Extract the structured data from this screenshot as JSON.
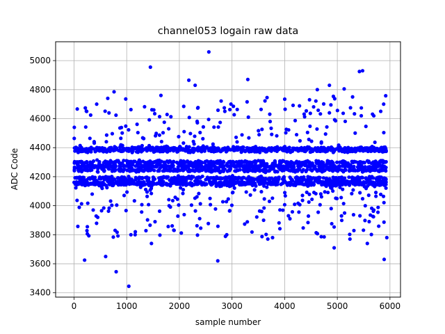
{
  "chart_data": {
    "type": "scatter",
    "title": "channel053 logain raw data",
    "xlabel": "sample number",
    "ylabel": "ADC Code",
    "xlim": [
      -350,
      6200
    ],
    "ylim": [
      3370,
      5130
    ],
    "xticks": [
      0,
      1000,
      2000,
      3000,
      4000,
      5000,
      6000
    ],
    "yticks": [
      3400,
      3600,
      3800,
      4000,
      4200,
      4400,
      4600,
      4800,
      5000
    ],
    "grid": true,
    "marker_color": "#0000ff",
    "series": [
      {
        "x_range": [
          0,
          5930
        ],
        "bands": [
          4245,
          4272,
          4300,
          4190,
          4165,
          4395,
          4380,
          4150
        ],
        "outliers": [
          [
            5,
            4540
          ],
          [
            200,
            3625
          ],
          [
            240,
            4650
          ],
          [
            430,
            4700
          ],
          [
            600,
            3650
          ],
          [
            640,
            4740
          ],
          [
            760,
            4785
          ],
          [
            800,
            3545
          ],
          [
            1040,
            3445
          ],
          [
            1080,
            3800
          ],
          [
            1450,
            4955
          ],
          [
            1470,
            3740
          ],
          [
            1650,
            4760
          ],
          [
            2180,
            4865
          ],
          [
            2300,
            4830
          ],
          [
            2560,
            5060
          ],
          [
            2730,
            3620
          ],
          [
            2980,
            4700
          ],
          [
            3300,
            4870
          ],
          [
            3680,
            3770
          ],
          [
            3770,
            3780
          ],
          [
            4620,
            4800
          ],
          [
            4750,
            3785
          ],
          [
            4850,
            4830
          ],
          [
            4940,
            3710
          ],
          [
            5080,
            3930
          ],
          [
            5130,
            4805
          ],
          [
            5240,
            3770
          ],
          [
            5290,
            4750
          ],
          [
            5420,
            4925
          ],
          [
            5480,
            4930
          ],
          [
            5570,
            3740
          ],
          [
            5880,
            4700
          ],
          [
            5890,
            3630
          ],
          [
            5940,
            3780
          ],
          [
            3600,
            3900
          ],
          [
            4100,
            3910
          ],
          [
            780,
            3830
          ],
          [
            1900,
            3830
          ],
          [
            2900,
            3800
          ]
        ]
      }
    ]
  }
}
